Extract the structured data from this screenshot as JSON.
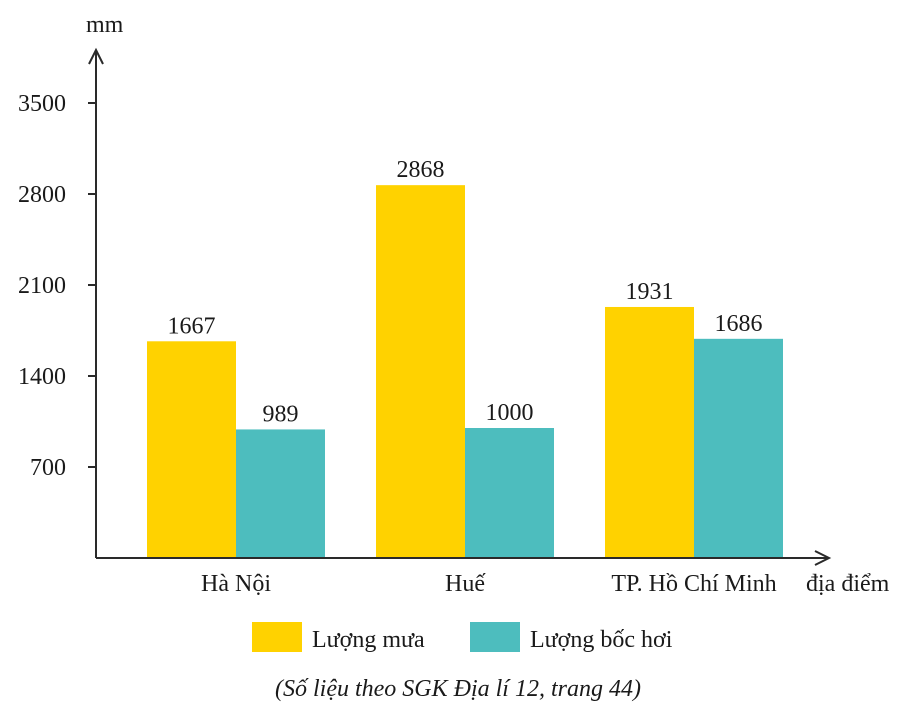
{
  "chart_data": {
    "type": "bar",
    "ylabel": "mm",
    "xlabel": "địa điểm",
    "categories": [
      "Hà Nội",
      "Huế",
      "TP. Hồ Chí Minh"
    ],
    "series": [
      {
        "name": "Lượng mưa",
        "values": [
          1667,
          2868,
          1931
        ],
        "color": "#FFD200"
      },
      {
        "name": "Lượng bốc hơi",
        "values": [
          989,
          1000,
          1686
        ],
        "color": "#4DBDBE"
      }
    ],
    "yticks": [
      700,
      1400,
      2100,
      2800,
      3500
    ],
    "ylim": [
      0,
      3500
    ],
    "grid": false,
    "legend": "bottom",
    "source": "(Số liệu theo SGK Địa lí 12, trang 44)"
  }
}
